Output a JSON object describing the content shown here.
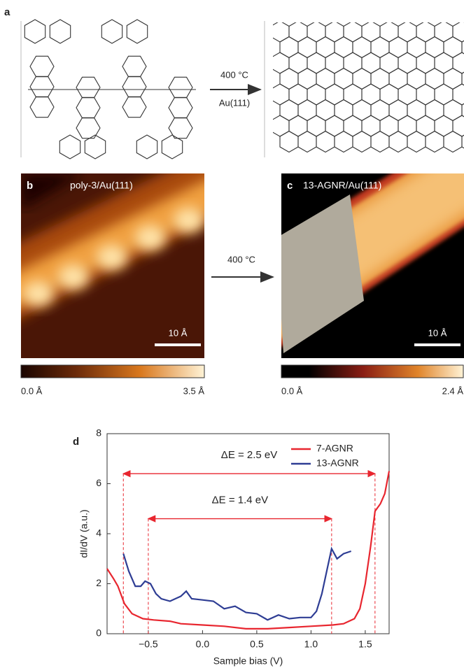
{
  "panel_a": {
    "label": "a",
    "arrow_top": "400 °C",
    "arrow_bottom": "Au(111)"
  },
  "panel_b": {
    "label": "b",
    "title": "poly-3/Au(111)",
    "scale_bar": "10 Å",
    "colorbar_min": "0.0 Å",
    "colorbar_max": "3.5 Å"
  },
  "arrow_bc": "400 °C",
  "panel_c": {
    "label": "c",
    "title": "13-AGNR/Au(111)",
    "scale_bar": "10 Å",
    "colorbar_min": "0.0 Å",
    "colorbar_max": "2.4 Å"
  },
  "chart_data": {
    "type": "line",
    "panel_label": "d",
    "x_label": "Sample bias (V)",
    "y_label": "dI/dV (a.u.)",
    "xlim": [
      -0.88,
      1.72
    ],
    "ylim": [
      0,
      8
    ],
    "xticks": [
      {
        "value": -0.5,
        "label": "−0.5"
      },
      {
        "value": 0,
        "label": "0.0"
      },
      0.5,
      {
        "value": 1,
        "label": "1.0"
      },
      1.5
    ],
    "yticks": [
      0,
      2,
      4,
      6,
      8
    ],
    "legend": "top-right",
    "series": [
      {
        "name": "7-AGNR",
        "color": "#e8262f",
        "x": [
          -0.88,
          -0.82,
          -0.78,
          -0.72,
          -0.65,
          -0.55,
          -0.45,
          -0.3,
          -0.2,
          0,
          0.2,
          0.4,
          0.6,
          0.8,
          1.0,
          1.2,
          1.3,
          1.4,
          1.45,
          1.5,
          1.55,
          1.59,
          1.64,
          1.68,
          1.72
        ],
        "values": [
          2.6,
          2.2,
          1.9,
          1.2,
          0.8,
          0.6,
          0.55,
          0.5,
          0.4,
          0.35,
          0.3,
          0.2,
          0.2,
          0.25,
          0.3,
          0.35,
          0.4,
          0.6,
          1.0,
          2.0,
          3.5,
          4.9,
          5.2,
          5.6,
          6.5
        ]
      },
      {
        "name": "13-AGNR",
        "color": "#2e3d94",
        "x": [
          -0.73,
          -0.68,
          -0.62,
          -0.57,
          -0.53,
          -0.48,
          -0.43,
          -0.38,
          -0.3,
          -0.2,
          -0.15,
          -0.1,
          0,
          0.1,
          0.2,
          0.3,
          0.4,
          0.5,
          0.6,
          0.7,
          0.8,
          0.9,
          1.0,
          1.05,
          1.1,
          1.15,
          1.19,
          1.24,
          1.3,
          1.37
        ],
        "values": [
          3.2,
          2.5,
          1.9,
          1.9,
          2.1,
          2.0,
          1.6,
          1.4,
          1.3,
          1.5,
          1.7,
          1.4,
          1.35,
          1.3,
          1.0,
          1.1,
          0.85,
          0.8,
          0.55,
          0.75,
          0.6,
          0.65,
          0.65,
          0.9,
          1.6,
          2.6,
          3.4,
          3.0,
          3.2,
          3.3
        ]
      }
    ],
    "annotations": [
      {
        "text": "ΔE = 2.5 eV",
        "x": [
          -0.73,
          1.59
        ],
        "y": 6.4
      },
      {
        "text": "ΔE = 1.4 eV",
        "x": [
          -0.5,
          1.19
        ],
        "y": 4.6
      }
    ]
  }
}
